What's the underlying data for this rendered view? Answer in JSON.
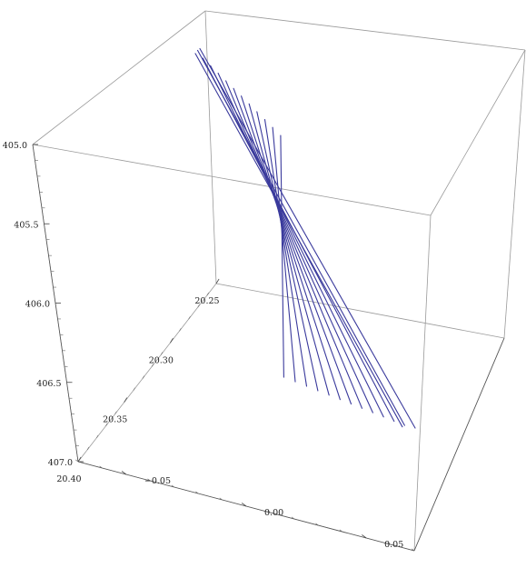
{
  "chart_data": {
    "type": "line3d",
    "title": "",
    "color": "#3a3a9c",
    "axes": {
      "x": {
        "label": "",
        "range": [
          20.25,
          20.4
        ],
        "ticks": [
          "20.25",
          "20.30",
          "20.35",
          "20.40"
        ]
      },
      "y": {
        "label": "",
        "range": [
          -0.07,
          0.07
        ],
        "ticks": [
          "−0.05",
          "0.00",
          "0.05"
        ]
      },
      "z": {
        "label": "",
        "range": [
          405.0,
          407.0
        ],
        "ticks": [
          "405.0",
          "405.5",
          "406.0",
          "406.5",
          "407.0"
        ],
        "reversed": true
      }
    },
    "series": [
      {
        "start": [
          20.282,
          -0.056,
          405.1
        ],
        "end": [
          20.352,
          0.048,
          406.69
        ]
      },
      {
        "start": [
          20.284,
          -0.052,
          405.13
        ],
        "end": [
          20.354,
          0.044,
          406.66
        ]
      },
      {
        "start": [
          20.286,
          -0.048,
          405.16
        ],
        "end": [
          20.356,
          0.04,
          406.63
        ]
      },
      {
        "start": [
          20.288,
          -0.044,
          405.19
        ],
        "end": [
          20.358,
          0.036,
          406.6
        ]
      },
      {
        "start": [
          20.29,
          -0.04,
          405.22
        ],
        "end": [
          20.36,
          0.032,
          406.57
        ]
      },
      {
        "start": [
          20.292,
          -0.036,
          405.25
        ],
        "end": [
          20.362,
          0.028,
          406.54
        ]
      },
      {
        "start": [
          20.294,
          -0.032,
          405.28
        ],
        "end": [
          20.364,
          0.024,
          406.51
        ]
      },
      {
        "start": [
          20.296,
          -0.028,
          405.31
        ],
        "end": [
          20.366,
          0.02,
          406.48
        ]
      },
      {
        "start": [
          20.298,
          -0.024,
          405.34
        ],
        "end": [
          20.368,
          0.016,
          406.45
        ]
      },
      {
        "start": [
          20.3,
          -0.02,
          405.37
        ],
        "end": [
          20.37,
          0.012,
          406.42
        ]
      },
      {
        "start": [
          20.302,
          -0.016,
          405.4
        ],
        "end": [
          20.372,
          0.008,
          406.39
        ]
      },
      {
        "start": [
          20.278,
          -0.06,
          405.08
        ],
        "end": [
          20.35,
          0.052,
          406.72
        ]
      },
      {
        "start": [
          20.28,
          -0.058,
          405.05
        ],
        "end": [
          20.348,
          0.056,
          406.74
        ]
      },
      {
        "start": [
          20.276,
          -0.062,
          405.12
        ],
        "end": [
          20.346,
          0.05,
          406.77
        ]
      }
    ]
  }
}
